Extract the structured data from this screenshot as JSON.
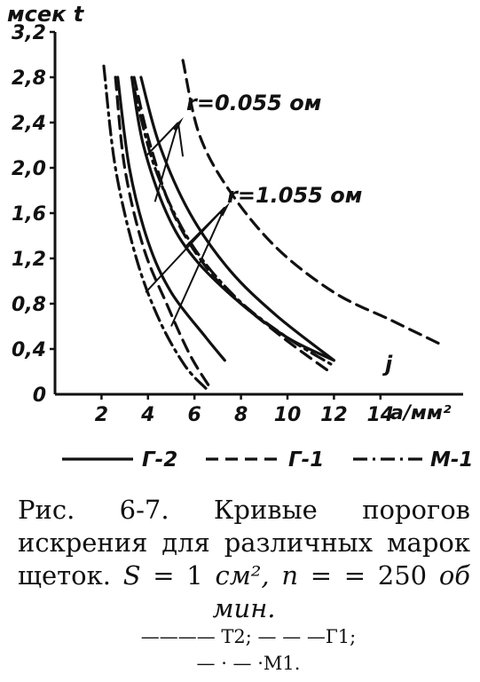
{
  "chart_data": {
    "type": "line",
    "title": "",
    "ylabel": "мсек  t",
    "xlabel": "а/мм²",
    "xlim": [
      0,
      17
    ],
    "ylim": [
      0,
      3.2
    ],
    "x_ticks": [
      "2",
      "4",
      "6",
      "8",
      "10",
      "12",
      "14"
    ],
    "y_ticks": [
      "0",
      "0,4",
      "0,8",
      "1,2",
      "1,6",
      "2,0",
      "2,4",
      "2,8",
      "3,2"
    ],
    "annotations": [
      "r=0.055 ом",
      "r=1.055 ом",
      "j"
    ],
    "legend": [
      {
        "label": "Г-2",
        "style": "solid"
      },
      {
        "label": "Г-1",
        "style": "dashed"
      },
      {
        "label": "М-1",
        "style": "dashdot"
      }
    ],
    "series": [
      {
        "name": "Г-2",
        "style": "solid",
        "x": [
          2.7,
          3.2,
          4.0,
          5.0,
          6.5,
          7.3
        ],
        "y": [
          2.8,
          2.0,
          1.35,
          0.9,
          0.5,
          0.3
        ]
      },
      {
        "name": "Г-2",
        "style": "solid",
        "x": [
          3.3,
          3.8,
          4.8,
          6.0,
          8.0,
          10.0,
          12.0
        ],
        "y": [
          2.8,
          2.2,
          1.6,
          1.2,
          0.8,
          0.5,
          0.3
        ]
      },
      {
        "name": "Г-2",
        "style": "solid",
        "x": [
          3.7,
          4.5,
          5.8,
          7.5,
          9.5,
          12.0
        ],
        "y": [
          2.8,
          2.2,
          1.6,
          1.1,
          0.7,
          0.3
        ]
      },
      {
        "name": "Г-1",
        "style": "dashed",
        "x": [
          2.6,
          3.0,
          3.8,
          4.8,
          5.8,
          6.7
        ],
        "y": [
          2.8,
          2.0,
          1.3,
          0.8,
          0.35,
          0.05
        ]
      },
      {
        "name": "Г-1",
        "style": "dashed",
        "x": [
          3.4,
          4.1,
          5.2,
          7.0,
          9.5,
          11.8
        ],
        "y": [
          2.8,
          2.2,
          1.55,
          1.0,
          0.55,
          0.2
        ]
      },
      {
        "name": "Г-1",
        "style": "dashed",
        "x": [
          5.5,
          6.2,
          7.5,
          9.5,
          12.0,
          14.5,
          16.5
        ],
        "y": [
          2.95,
          2.3,
          1.8,
          1.3,
          0.9,
          0.65,
          0.45
        ]
      },
      {
        "name": "М-1",
        "style": "dashdot",
        "x": [
          2.1,
          2.6,
          3.5,
          4.5,
          5.6,
          6.5
        ],
        "y": [
          2.9,
          2.0,
          1.2,
          0.65,
          0.25,
          0.05
        ]
      },
      {
        "name": "М-1",
        "style": "dashdot",
        "x": [
          3.4,
          4.3,
          5.8,
          7.8,
          10.0,
          12.0
        ],
        "y": [
          2.7,
          2.0,
          1.35,
          0.85,
          0.5,
          0.25
        ]
      }
    ]
  },
  "caption": {
    "fig": "Рис. 6-7.",
    "text_a": " Кривые порогов искрения для различных марок щеток. ",
    "s_label": "S",
    "s_value": " = 1 ",
    "s_unit": "см²",
    "n_label": ",  n =",
    "n_value": " = 250 ",
    "n_unit": "об мин."
  },
  "legend_lines": [
    "———— Т2;  — — —Г1;",
    "— · — ·М1."
  ]
}
